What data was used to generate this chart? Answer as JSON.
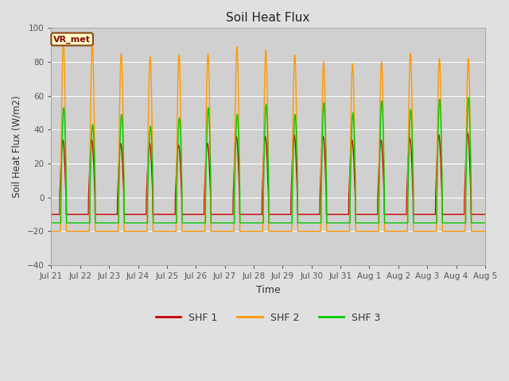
{
  "title": "Soil Heat Flux",
  "ylabel": "Soil Heat Flux (W/m2)",
  "xlabel": "Time",
  "ylim": [
    -40,
    100
  ],
  "yticks": [
    -40,
    -20,
    0,
    20,
    40,
    60,
    80,
    100
  ],
  "xtick_labels": [
    "Jul 21",
    "Jul 22",
    "Jul 23",
    "Jul 24",
    "Jul 25",
    "Jul 26",
    "Jul 27",
    "Jul 28",
    "Jul 29",
    "Jul 30",
    "Jul 31",
    "Aug 1",
    "Aug 2",
    "Aug 3",
    "Aug 4",
    "Aug 5"
  ],
  "colors": {
    "SHF 1": "#cc0000",
    "SHF 2": "#ff9900",
    "SHF 3": "#00cc00"
  },
  "legend_label": "VR_met",
  "bg_color": "#e0e0e0",
  "plot_bg": "#d0d0d0",
  "grid_color": "#ffffff",
  "n_days": 16,
  "shf1_amps": [
    34,
    34,
    32,
    32,
    31,
    32,
    36,
    36,
    37,
    36,
    34,
    34,
    35,
    37,
    38,
    37
  ],
  "shf1_trough": -10,
  "shf2_amps": [
    91,
    90,
    85,
    83,
    84,
    85,
    89,
    87,
    84,
    80,
    79,
    80,
    85,
    82,
    82,
    80
  ],
  "shf2_trough": -20,
  "shf3_amps": [
    53,
    43,
    49,
    42,
    47,
    53,
    49,
    55,
    49,
    56,
    50,
    57,
    52,
    58,
    59,
    59
  ],
  "shf3_trough": -15
}
